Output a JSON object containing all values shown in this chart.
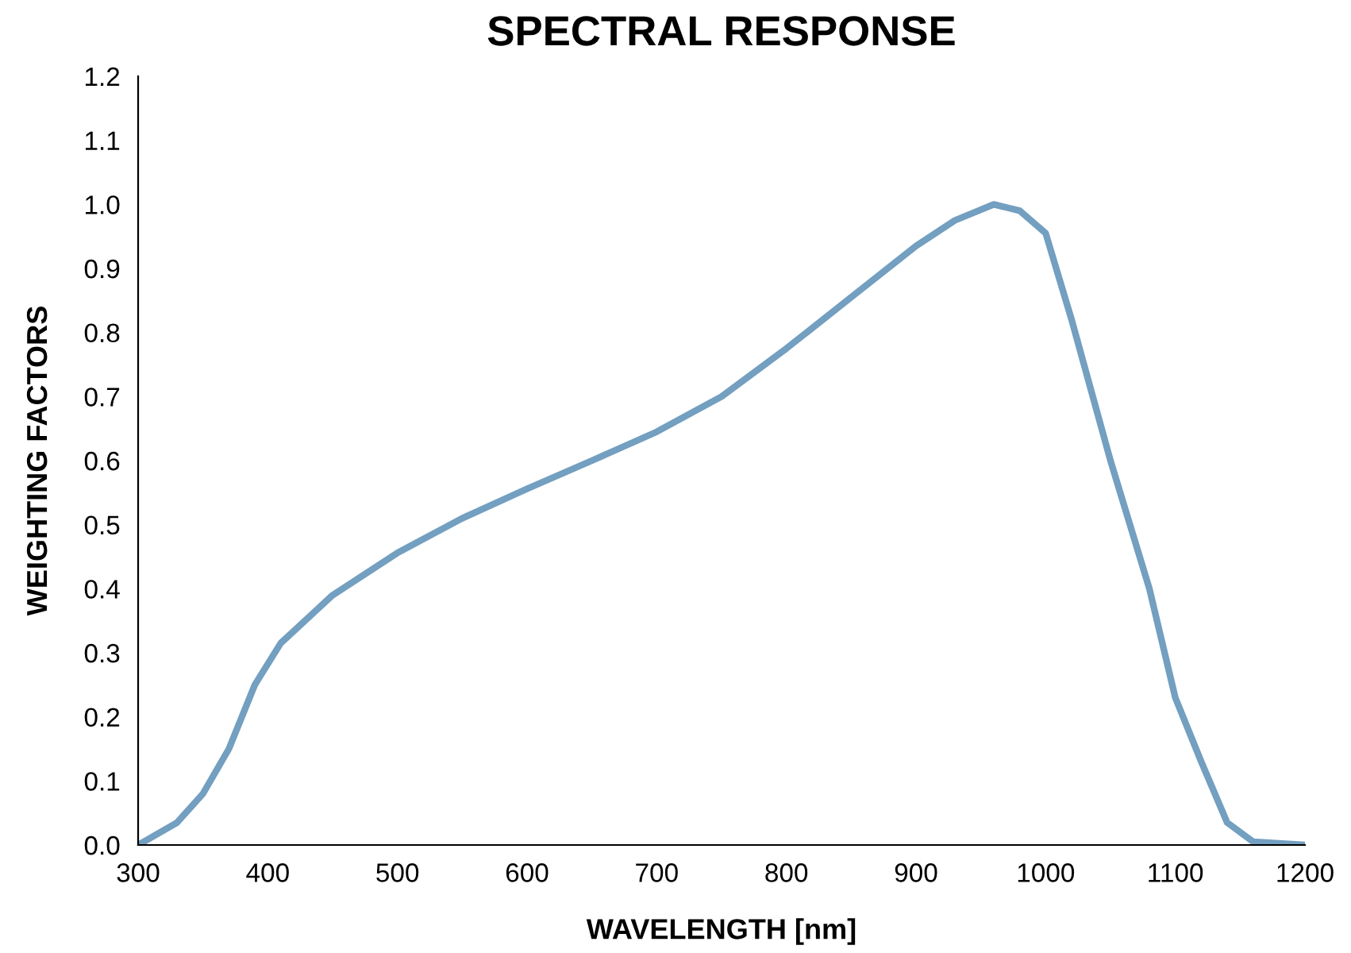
{
  "chart_data": {
    "type": "line",
    "title": "SPECTRAL RESPONSE",
    "xlabel": "WAVELENGTH [nm]",
    "ylabel": "WEIGHTING FACTORS",
    "x": [
      300,
      330,
      350,
      370,
      390,
      410,
      450,
      500,
      550,
      600,
      650,
      700,
      750,
      800,
      850,
      900,
      930,
      960,
      980,
      1000,
      1020,
      1050,
      1080,
      1100,
      1120,
      1140,
      1160,
      1200
    ],
    "series": [
      {
        "color": "#739fc0",
        "values": [
          0.0,
          0.035,
          0.08,
          0.15,
          0.25,
          0.315,
          0.39,
          0.456,
          0.51,
          0.556,
          0.6,
          0.645,
          0.7,
          0.775,
          0.855,
          0.935,
          0.975,
          1.0,
          0.99,
          0.955,
          0.82,
          0.6,
          0.4,
          0.23,
          0.13,
          0.035,
          0.005,
          0.0
        ]
      }
    ],
    "xlim": [
      300,
      1200
    ],
    "ylim": [
      0,
      1.2
    ],
    "xticks": [
      300,
      400,
      500,
      600,
      700,
      800,
      900,
      1000,
      1100,
      1200
    ],
    "yticks": [
      {
        "value": 0,
        "label": "0.0"
      },
      0.1,
      0.2,
      0.3,
      0.4,
      0.5,
      0.6,
      0.7,
      0.8,
      0.9,
      {
        "value": 1,
        "label": "1.0"
      },
      1.1,
      1.2
    ],
    "grid": false,
    "legend": false,
    "marker": "none",
    "line_style": "solid"
  }
}
